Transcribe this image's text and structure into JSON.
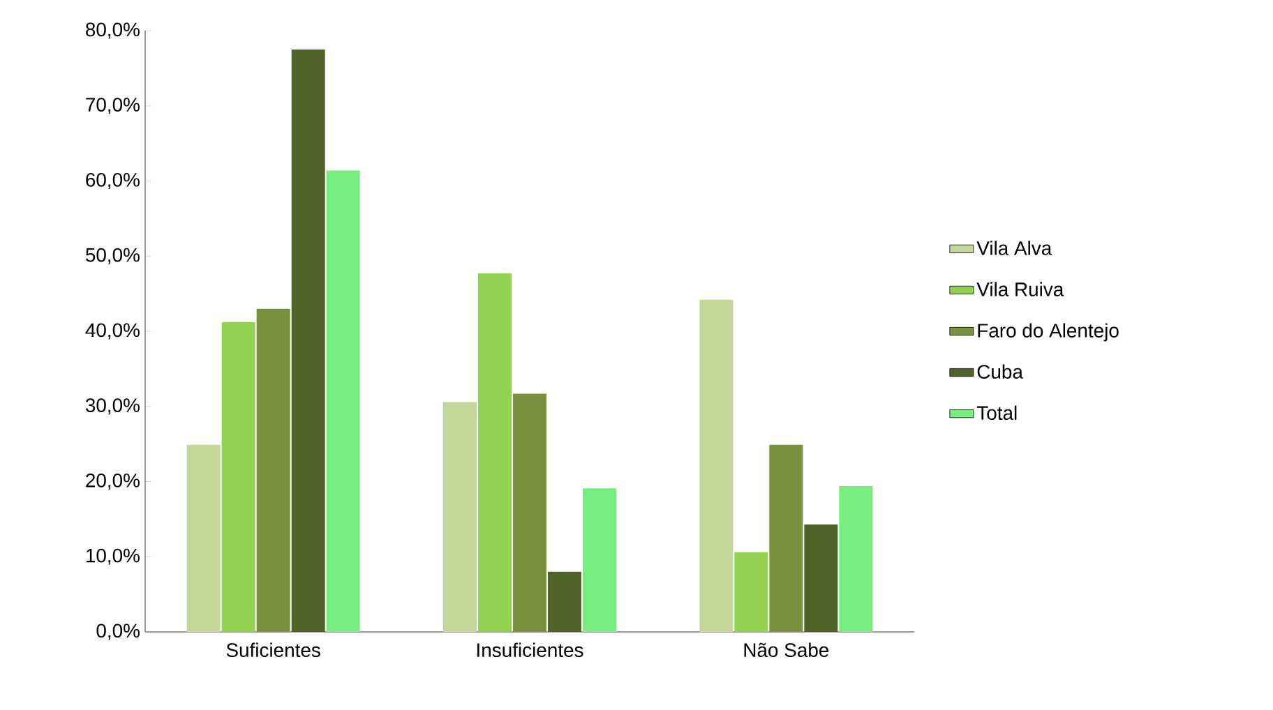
{
  "chart_data": {
    "type": "bar",
    "categories": [
      "Suficientes",
      "Insuficientes",
      "Não Sabe"
    ],
    "series": [
      {
        "name": "Vila Alva",
        "color": "#c4d79b",
        "values": [
          24.9,
          30.6,
          44.2
        ]
      },
      {
        "name": "Vila Ruiva",
        "color": "#92d050",
        "values": [
          41.2,
          47.7,
          10.6
        ]
      },
      {
        "name": "Faro do Alentejo",
        "color": "#76923c",
        "values": [
          43.0,
          31.7,
          24.9
        ]
      },
      {
        "name": "Cuba",
        "color": "#4f6228",
        "values": [
          77.5,
          8.0,
          14.3
        ]
      },
      {
        "name": "Total",
        "color": "#77ec7f",
        "values": [
          61.4,
          19.1,
          19.4
        ]
      }
    ],
    "ylim": [
      0,
      80
    ],
    "yticks": [
      {
        "value": 0,
        "label": "0,0%"
      },
      {
        "value": 10,
        "label": "10,0%"
      },
      {
        "value": 20,
        "label": "20,0%"
      },
      {
        "value": 30,
        "label": "30,0%"
      },
      {
        "value": 40,
        "label": "40,0%"
      },
      {
        "value": 50,
        "label": "50,0%"
      },
      {
        "value": 60,
        "label": "60,0%"
      },
      {
        "value": 70,
        "label": "70,0%"
      },
      {
        "value": 80,
        "label": "80,0%"
      }
    ],
    "legend": "right",
    "grid": false
  }
}
